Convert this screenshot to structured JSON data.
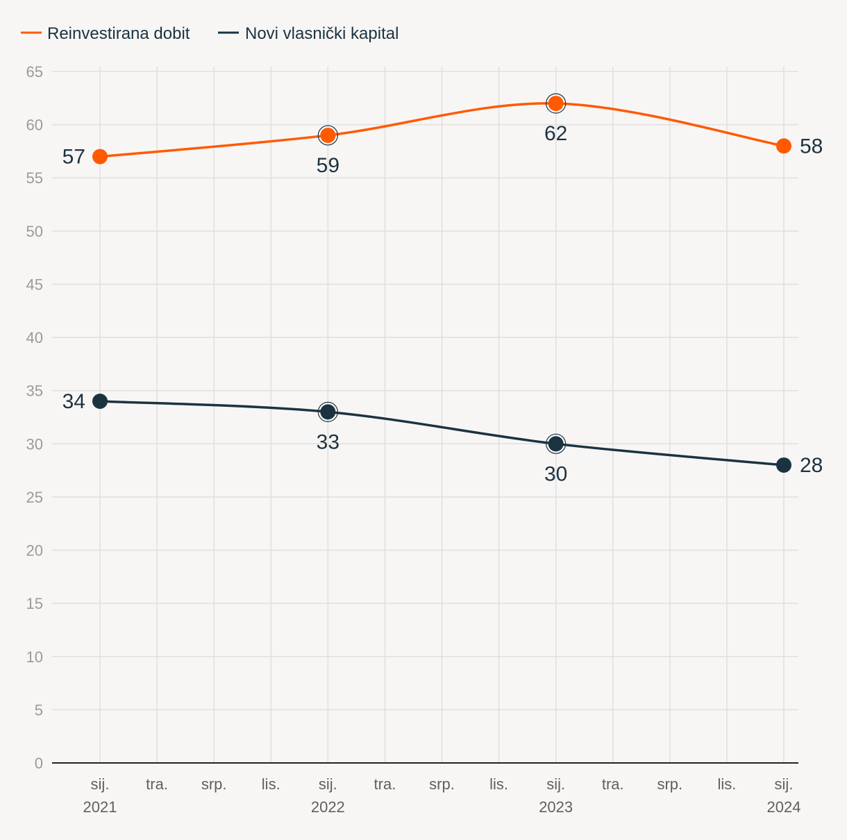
{
  "chart_data": {
    "type": "line",
    "title": "",
    "xlabel": "",
    "ylabel": "",
    "ylim": [
      0,
      65
    ],
    "yticks": [
      0,
      5,
      10,
      15,
      20,
      25,
      30,
      35,
      40,
      45,
      50,
      55,
      60,
      65
    ],
    "x_months": [
      0,
      12,
      24,
      36
    ],
    "x_tick_labels": [
      {
        "month": 0,
        "line1": "sij.",
        "line2": "2021"
      },
      {
        "month": 3,
        "line1": "tra.",
        "line2": ""
      },
      {
        "month": 6,
        "line1": "srp.",
        "line2": ""
      },
      {
        "month": 9,
        "line1": "lis.",
        "line2": ""
      },
      {
        "month": 12,
        "line1": "sij.",
        "line2": "2022"
      },
      {
        "month": 15,
        "line1": "tra.",
        "line2": ""
      },
      {
        "month": 18,
        "line1": "srp.",
        "line2": ""
      },
      {
        "month": 21,
        "line1": "lis.",
        "line2": ""
      },
      {
        "month": 24,
        "line1": "sij.",
        "line2": "2023"
      },
      {
        "month": 27,
        "line1": "tra.",
        "line2": ""
      },
      {
        "month": 30,
        "line1": "srp.",
        "line2": ""
      },
      {
        "month": 33,
        "line1": "lis.",
        "line2": ""
      },
      {
        "month": 36,
        "line1": "sij.",
        "line2": "2024"
      }
    ],
    "series": [
      {
        "name": "Reinvestirana dobit",
        "color": "#ff5a00",
        "values": [
          57,
          59,
          62,
          58
        ],
        "label_pos": [
          "left",
          "below",
          "below",
          "right"
        ]
      },
      {
        "name": "Novi vlasnički kapital",
        "color": "#1b3341",
        "values": [
          34,
          33,
          30,
          28
        ],
        "label_pos": [
          "left",
          "below",
          "below",
          "right"
        ]
      }
    ],
    "legend": "top-left",
    "grid": true
  }
}
